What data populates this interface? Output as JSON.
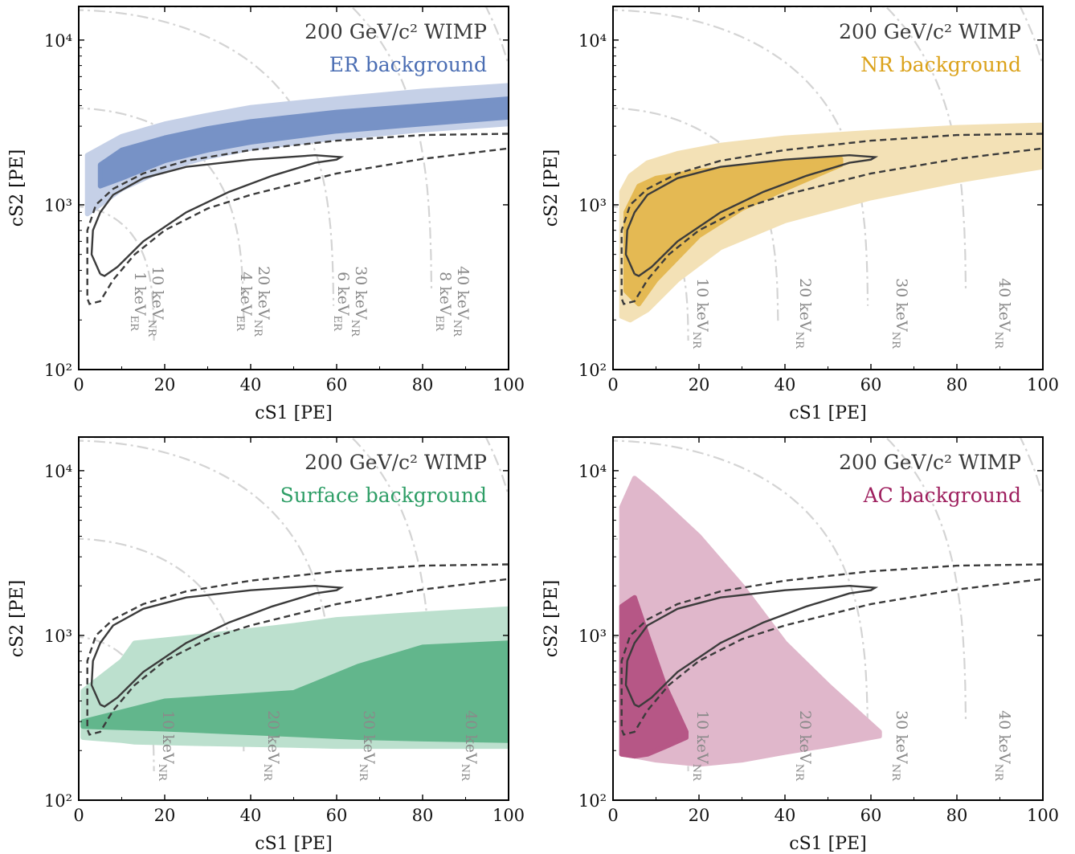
{
  "chart_data": [
    {
      "type": "area",
      "title": "200 GeV/c² WIMP",
      "subtitle": "ER background",
      "accent": "#4a6db3",
      "xlabel": "cS1 [PE]",
      "ylabel": "cS2 [PE]",
      "xlim": [
        0,
        100
      ],
      "ylim": [
        100,
        16000
      ],
      "yscale": "log",
      "xticks": [
        "0",
        "20",
        "40",
        "60",
        "80",
        "100"
      ],
      "yticks": [
        "10²",
        "10³",
        "10⁴"
      ],
      "energy_labels": [
        {
          "nr": "10 keV",
          "er": "1 keV"
        },
        {
          "nr": "20 keV",
          "er": "4 keV"
        },
        {
          "nr": "30 keV",
          "er": "6 keV"
        },
        {
          "nr": "40 keV",
          "er": "8 keV"
        }
      ],
      "series": [
        {
          "band": "outer",
          "x": [
            2,
            10,
            20,
            30,
            40,
            60,
            80,
            100
          ],
          "lower": [
            880,
            1250,
            1650,
            1950,
            2200,
            2550,
            2850,
            3100
          ],
          "upper": [
            2000,
            2600,
            3100,
            3500,
            3900,
            4400,
            4900,
            5300
          ]
        },
        {
          "band": "inner",
          "x": [
            5,
            10,
            20,
            30,
            40,
            60,
            80,
            100
          ],
          "lower": [
            1300,
            1450,
            1850,
            2150,
            2400,
            2800,
            3100,
            3400
          ],
          "upper": [
            1750,
            2150,
            2550,
            2900,
            3200,
            3650,
            4000,
            4400
          ]
        }
      ]
    },
    {
      "type": "area",
      "title": "200 GeV/c² WIMP",
      "subtitle": "NR background",
      "accent": "#dba21a",
      "xlabel": "cS1 [PE]",
      "ylabel": "cS2 [PE]",
      "xlim": [
        0,
        100
      ],
      "ylim": [
        100,
        16000
      ],
      "yscale": "log",
      "xticks": [
        "0",
        "20",
        "40",
        "60",
        "80",
        "100"
      ],
      "yticks": [
        "10²",
        "10³",
        "10⁴"
      ],
      "energy_labels": [
        {
          "nr": "10 keV"
        },
        {
          "nr": "20 keV"
        },
        {
          "nr": "30 keV"
        },
        {
          "nr": "40 keV"
        }
      ],
      "series": [
        {
          "band": "outer",
          "x": [
            2,
            4,
            8,
            15,
            25,
            40,
            60,
            80,
            100
          ],
          "lower": [
            210,
            200,
            230,
            350,
            550,
            800,
            1100,
            1400,
            1700
          ],
          "upper": [
            1200,
            1500,
            1800,
            2050,
            2300,
            2550,
            2750,
            2950,
            3050
          ]
        },
        {
          "band": "inner",
          "x": [
            3,
            6,
            10,
            20,
            30,
            40,
            53
          ],
          "lower": [
            300,
            250,
            350,
            650,
            950,
            1250,
            1750
          ],
          "upper": [
            900,
            1300,
            1450,
            1600,
            1700,
            1800,
            1900
          ]
        }
      ]
    },
    {
      "type": "area",
      "title": "200 GeV/c² WIMP",
      "subtitle": "Surface background",
      "accent": "#2e9e66",
      "xlabel": "cS1 [PE]",
      "ylabel": "cS2 [PE]",
      "xlim": [
        0,
        100
      ],
      "ylim": [
        100,
        16000
      ],
      "yscale": "log",
      "xticks": [
        "0",
        "20",
        "40",
        "60",
        "80",
        "100"
      ],
      "yticks": [
        "10²",
        "10³",
        "10⁴"
      ],
      "energy_labels": [
        {
          "nr": "10 keV"
        },
        {
          "nr": "20 keV"
        },
        {
          "nr": "30 keV"
        },
        {
          "nr": "40 keV"
        }
      ],
      "series": [
        {
          "band": "outer",
          "x": [
            1,
            10,
            13,
            30,
            50,
            60,
            80,
            100
          ],
          "lower": [
            240,
            230,
            225,
            220,
            215,
            212,
            212,
            212
          ],
          "upper": [
            460,
            700,
            900,
            1000,
            1150,
            1250,
            1350,
            1450
          ]
        },
        {
          "band": "inner",
          "x": [
            1,
            20,
            50,
            65,
            80,
            100
          ],
          "lower": [
            280,
            270,
            250,
            240,
            235,
            230
          ],
          "upper": [
            300,
            400,
            450,
            650,
            850,
            900
          ]
        }
      ]
    },
    {
      "type": "area",
      "title": "200 GeV/c² WIMP",
      "subtitle": "AC background",
      "accent": "#9e1f5e",
      "xlabel": "cS1 [PE]",
      "ylabel": "cS2 [PE]",
      "xlim": [
        0,
        100
      ],
      "ylim": [
        100,
        16000
      ],
      "yscale": "log",
      "xticks": [
        "0",
        "20",
        "40",
        "60",
        "80",
        "100"
      ],
      "yticks": [
        "10²",
        "10³",
        "10⁴"
      ],
      "energy_labels": [
        {
          "nr": "10 keV"
        },
        {
          "nr": "20 keV"
        },
        {
          "nr": "30 keV"
        },
        {
          "nr": "40 keV"
        }
      ],
      "series": [
        {
          "band": "outer",
          "x": [
            2,
            5,
            10,
            20,
            30,
            40,
            50,
            62
          ],
          "lower": [
            190,
            185,
            175,
            165,
            175,
            195,
            215,
            245
          ],
          "upper": [
            6000,
            9000,
            7000,
            4000,
            2000,
            900,
            500,
            260
          ]
        },
        {
          "band": "inner",
          "x": [
            2,
            5,
            8,
            12,
            17
          ],
          "lower": [
            190,
            185,
            190,
            210,
            240
          ],
          "upper": [
            1500,
            1700,
            1000,
            500,
            260
          ]
        }
      ]
    }
  ],
  "wimp_contours": {
    "inner": {
      "x": [
        5,
        3,
        3.3,
        5,
        8,
        15,
        25,
        40,
        55,
        61,
        60,
        55,
        45,
        35,
        25,
        15,
        9,
        6,
        5
      ],
      "y": [
        380,
        500,
        700,
        900,
        1150,
        1450,
        1700,
        1880,
        2000,
        1950,
        1880,
        1800,
        1500,
        1200,
        900,
        600,
        420,
        370,
        380
      ]
    },
    "dashed_upper": {
      "x": [
        2,
        4,
        8,
        15,
        25,
        40,
        60,
        80,
        100
      ],
      "y": [
        700,
        1000,
        1250,
        1550,
        1850,
        2150,
        2450,
        2650,
        2700
      ]
    },
    "dashed_lower": {
      "x": [
        2,
        2.5,
        5,
        8,
        13,
        20,
        30,
        40,
        60,
        80,
        100
      ],
      "y": [
        270,
        250,
        260,
        350,
        500,
        700,
        950,
        1150,
        1550,
        1900,
        2200
      ]
    }
  }
}
